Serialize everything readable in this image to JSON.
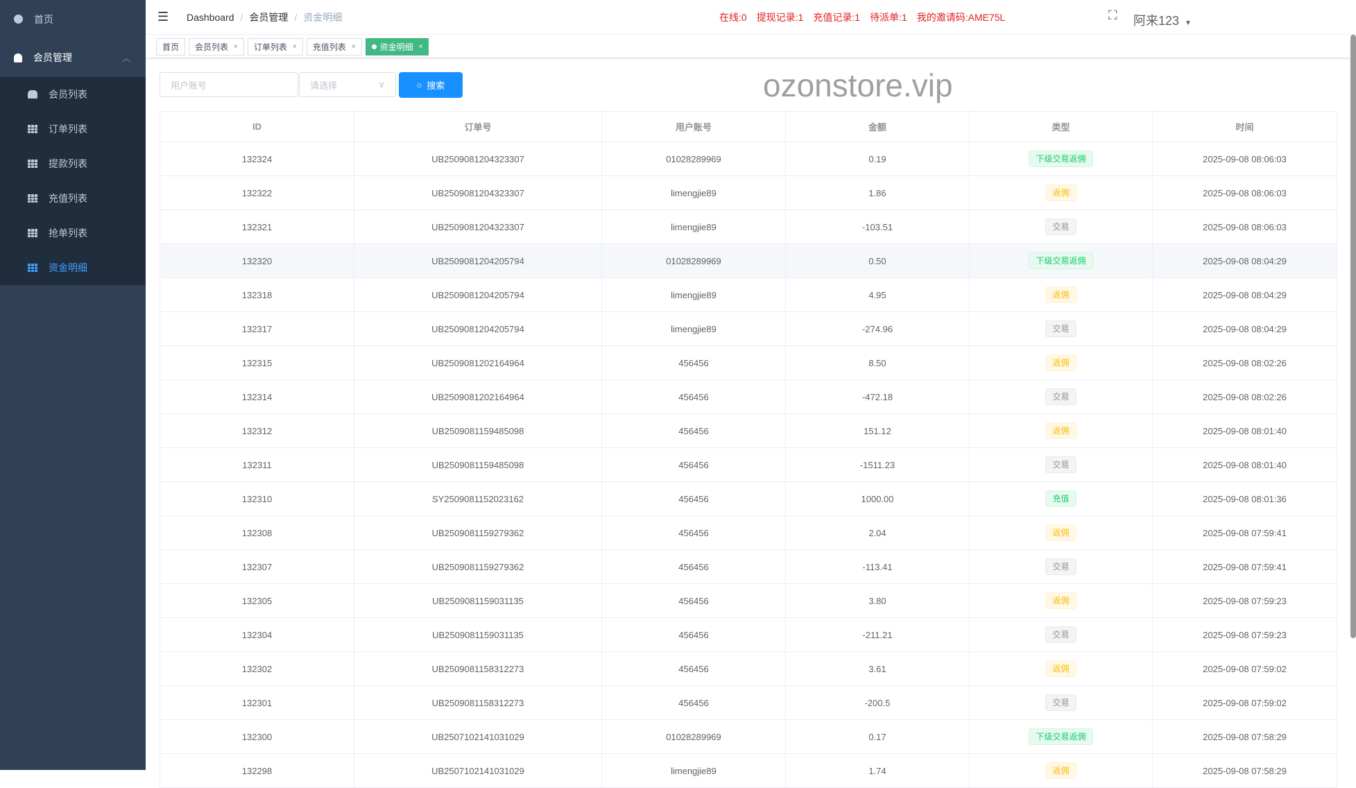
{
  "sidebar": {
    "home": "首页",
    "group": "会员管理",
    "items": [
      {
        "label": "会员列表",
        "icon": "users-icon"
      },
      {
        "label": "订单列表",
        "icon": "table-icon"
      },
      {
        "label": "提款列表",
        "icon": "table-icon"
      },
      {
        "label": "充值列表",
        "icon": "table-icon"
      },
      {
        "label": "抢单列表",
        "icon": "table-icon"
      },
      {
        "label": "资金明细",
        "icon": "table-icon",
        "active": true
      }
    ]
  },
  "breadcrumb": [
    "Dashboard",
    "会员管理",
    "资金明细"
  ],
  "stats": [
    "在线:0",
    "提现记录:1",
    "充值记录:1",
    "待派单:1",
    "我的邀请码:AME75L"
  ],
  "user": "阿来123",
  "tags": [
    "首页",
    "会员列表",
    "订单列表",
    "充值列表",
    "资金明细"
  ],
  "search": {
    "account_placeholder": "用户账号",
    "select_placeholder": "请选择",
    "button": "搜索"
  },
  "table": {
    "headers": [
      "ID",
      "订单号",
      "用户账号",
      "金额",
      "类型",
      "时间"
    ],
    "rows": [
      [
        "132324",
        "UB2509081204323307",
        "01028289969",
        "0.19",
        "下级交易返佣",
        "2025-09-08 08:06:03"
      ],
      [
        "132322",
        "UB2509081204323307",
        "limengjie89",
        "1.86",
        "返佣",
        "2025-09-08 08:06:03"
      ],
      [
        "132321",
        "UB2509081204323307",
        "limengjie89",
        "-103.51",
        "交易",
        "2025-09-08 08:06:03"
      ],
      [
        "132320",
        "UB2509081204205794",
        "01028289969",
        "0.50",
        "下级交易返佣",
        "2025-09-08 08:04:29"
      ],
      [
        "132318",
        "UB2509081204205794",
        "limengjie89",
        "4.95",
        "返佣",
        "2025-09-08 08:04:29"
      ],
      [
        "132317",
        "UB2509081204205794",
        "limengjie89",
        "-274.96",
        "交易",
        "2025-09-08 08:04:29"
      ],
      [
        "132315",
        "UB2509081202164964",
        "456456",
        "8.50",
        "返佣",
        "2025-09-08 08:02:26"
      ],
      [
        "132314",
        "UB2509081202164964",
        "456456",
        "-472.18",
        "交易",
        "2025-09-08 08:02:26"
      ],
      [
        "132312",
        "UB2509081159485098",
        "456456",
        "151.12",
        "返佣",
        "2025-09-08 08:01:40"
      ],
      [
        "132311",
        "UB2509081159485098",
        "456456",
        "-1511.23",
        "交易",
        "2025-09-08 08:01:40"
      ],
      [
        "132310",
        "SY2509081152023162",
        "456456",
        "1000.00",
        "充值",
        "2025-09-08 08:01:36"
      ],
      [
        "132308",
        "UB2509081159279362",
        "456456",
        "2.04",
        "返佣",
        "2025-09-08 07:59:41"
      ],
      [
        "132307",
        "UB2509081159279362",
        "456456",
        "-113.41",
        "交易",
        "2025-09-08 07:59:41"
      ],
      [
        "132305",
        "UB2509081159031135",
        "456456",
        "3.80",
        "返佣",
        "2025-09-08 07:59:23"
      ],
      [
        "132304",
        "UB2509081159031135",
        "456456",
        "-211.21",
        "交易",
        "2025-09-08 07:59:23"
      ],
      [
        "132302",
        "UB2509081158312273",
        "456456",
        "3.61",
        "返佣",
        "2025-09-08 07:59:02"
      ],
      [
        "132301",
        "UB2509081158312273",
        "456456",
        "-200.5",
        "交易",
        "2025-09-08 07:59:02"
      ],
      [
        "132300",
        "UB2507102141031029",
        "01028289969",
        "0.17",
        "下级交易返佣",
        "2025-09-08 07:58:29"
      ],
      [
        "132298",
        "UB2507102141031029",
        "limengjie89",
        "1.74",
        "返佣",
        "2025-09-08 07:58:29"
      ]
    ]
  },
  "watermark": "ozonstore.vip"
}
